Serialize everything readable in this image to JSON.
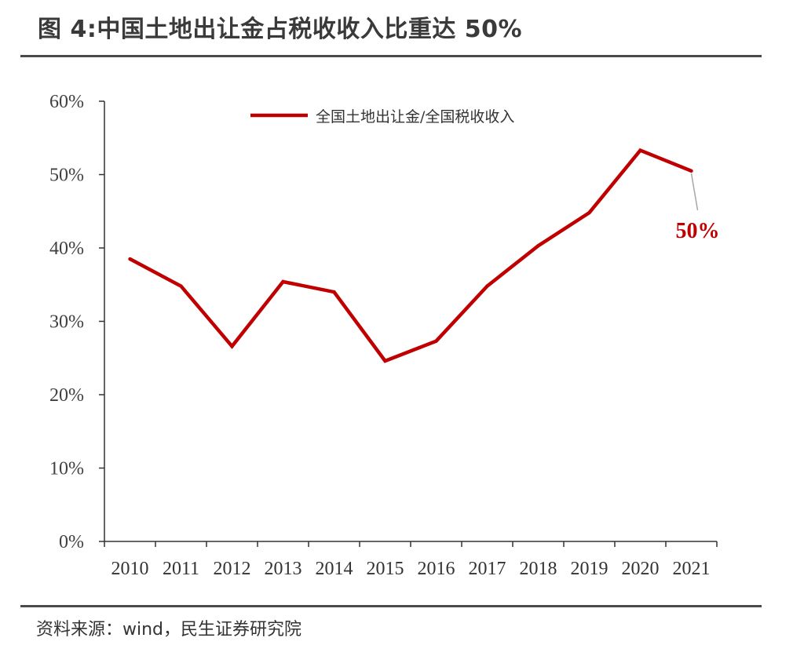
{
  "title": "图 4:中国土地出让金占税收收入比重达 50%",
  "source": "资料来源：wind，民生证券研究院",
  "colors": {
    "series": "#c00000",
    "axis": "#333333",
    "rule": "#4a4a4a",
    "leader": "#a6a6a6"
  },
  "chart_data": {
    "type": "line",
    "title": "",
    "xlabel": "",
    "ylabel": "",
    "x": [
      "2010",
      "2011",
      "2012",
      "2013",
      "2014",
      "2015",
      "2016",
      "2017",
      "2018",
      "2019",
      "2020",
      "2021"
    ],
    "series": [
      {
        "name": "全国土地出让金/全国税收收入",
        "values": [
          38.5,
          34.8,
          26.6,
          35.4,
          34.0,
          24.6,
          27.3,
          34.8,
          40.3,
          44.8,
          53.3,
          50.5
        ]
      }
    ],
    "ylim": [
      0,
      60
    ],
    "y_ticks": [
      "0%",
      "10%",
      "20%",
      "30%",
      "40%",
      "50%",
      "60%"
    ],
    "grid": false,
    "legend": "top-center",
    "annotation": {
      "text": "50%",
      "x": "2021"
    }
  }
}
